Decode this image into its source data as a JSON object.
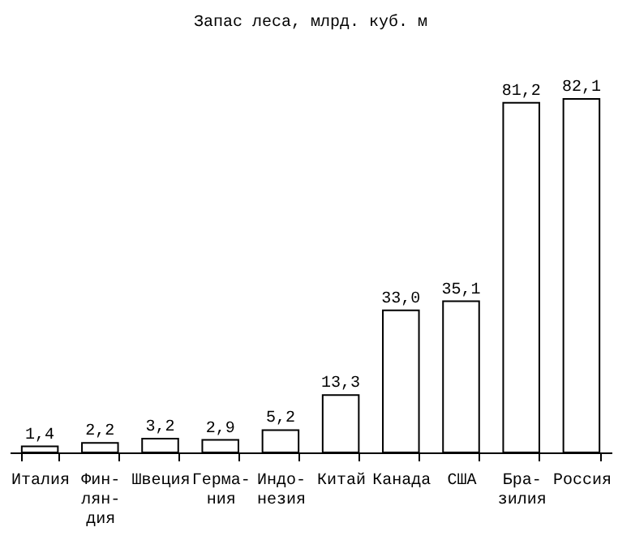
{
  "chart_data": {
    "type": "bar",
    "title": "Запас леса, млрд. куб. м",
    "categories": [
      "Италия",
      "Фин-\nлян-\nдия",
      "Швеция",
      "Герма-\nния",
      "Индо-\nнезия",
      "Китай",
      "Канада",
      "США",
      "Бра-\nзилия",
      "Россия"
    ],
    "values": [
      1.4,
      2.2,
      3.2,
      2.9,
      5.2,
      13.3,
      33.0,
      35.1,
      81.2,
      82.1
    ],
    "value_labels": [
      "1,4",
      "2,2",
      "3,2",
      "2,9",
      "5,2",
      "13,3",
      "33,0",
      "35,1",
      "81,2",
      "82,1"
    ],
    "color": "#ffffff"
  }
}
